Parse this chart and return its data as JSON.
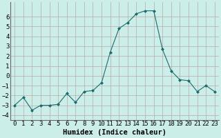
{
  "x": [
    0,
    1,
    2,
    3,
    4,
    5,
    6,
    7,
    8,
    9,
    10,
    11,
    12,
    13,
    14,
    15,
    16,
    17,
    18,
    19,
    20,
    21,
    22,
    23
  ],
  "y": [
    -3.0,
    -2.2,
    -3.5,
    -3.0,
    -3.0,
    -2.9,
    -1.8,
    -2.7,
    -1.6,
    -1.5,
    -0.7,
    2.4,
    4.8,
    5.4,
    6.3,
    6.6,
    6.6,
    2.7,
    0.5,
    -0.4,
    -0.5,
    -1.6,
    -1.0,
    -1.6
  ],
  "line_color": "#1a6b6b",
  "marker": "D",
  "markersize": 2.0,
  "linewidth": 0.8,
  "bg_color": "#cceee8",
  "grid_color": "#b8a8a8",
  "xlabel": "Humidex (Indice chaleur)",
  "xlim": [
    -0.5,
    23.5
  ],
  "ylim": [
    -4.5,
    7.5
  ],
  "yticks": [
    -4,
    -3,
    -2,
    -1,
    0,
    1,
    2,
    3,
    4,
    5,
    6
  ],
  "xtick_labels": [
    "0",
    "1",
    "2",
    "3",
    "4",
    "5",
    "6",
    "7",
    "8",
    "9",
    "10",
    "11",
    "12",
    "13",
    "14",
    "15",
    "16",
    "17",
    "18",
    "19",
    "20",
    "21",
    "22",
    "23"
  ],
  "xlabel_fontsize": 7.5,
  "tick_fontsize": 6.5
}
